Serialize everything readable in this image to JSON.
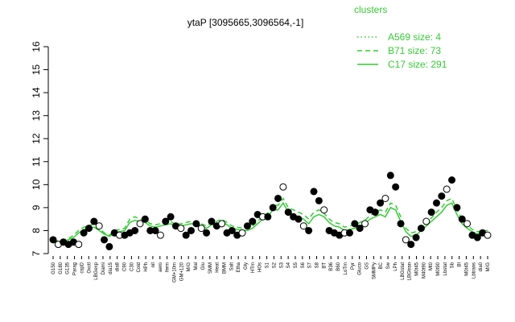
{
  "chart_data": {
    "type": "scatter",
    "title": "ytaP [3095665,3096564,-1]",
    "xlabel": "",
    "ylabel": "",
    "ylim": [
      7,
      16
    ],
    "yticks": [
      7,
      8,
      9,
      10,
      11,
      12,
      13,
      14,
      15,
      16
    ],
    "grid": false,
    "legend": {
      "title": "clusters",
      "placement": "top-right",
      "entries": [
        {
          "label": "A569 size: 4",
          "style": "dotted"
        },
        {
          "label": "B71 size: 73",
          "style": "dashed"
        },
        {
          "label": "C17 size: 291",
          "style": "solid"
        }
      ]
    },
    "colors": {
      "line": "#33cc33",
      "points": "#000000",
      "open_points": "#ffffff",
      "title": "#000000",
      "legend": "#33cc33"
    },
    "x_tick_labels": [
      "G150",
      "G180",
      "G135",
      "Parag",
      "cspD",
      "Oxctl",
      "LBGexp",
      "Diami",
      "dia15",
      "dia8",
      "C90",
      "C30",
      "Cold",
      "HPh",
      "nit",
      "aero",
      "ferm",
      "GM+10m",
      "GM+120",
      "M/G",
      "Mal",
      "Glu",
      "SMM",
      "Heat",
      "BMM",
      "Salt",
      "Etha",
      "Gly",
      "HTm",
      "HOs",
      "S1",
      "S2",
      "S3",
      "S4",
      "S5",
      "S6",
      "S7",
      "S8",
      "BT",
      "B36",
      "B60",
      "LoTm",
      "Pyr",
      "Gluco",
      "GS",
      "SMMPy",
      "BC",
      "Sw",
      "LPh",
      "LBGstat",
      "LBGtran",
      "M0t45",
      "M40t90",
      "Mt0",
      "M0t90",
      "Lbstat",
      "Sb",
      "BI",
      "M0t45",
      "Lbtrans",
      "dia0",
      "M/G"
    ],
    "series": [
      {
        "values": [
          7.6,
          7.4,
          7.5,
          7.4,
          7.5,
          7.4,
          7.9,
          8.1,
          8.4,
          8.2,
          7.6,
          7.3,
          7.9,
          7.8,
          7.8,
          7.9,
          8.0,
          8.3,
          8.5,
          8.0,
          8.0,
          7.8,
          8.4,
          8.6,
          8.2,
          8.1,
          7.8,
          8.0,
          8.3,
          8.1,
          7.9,
          8.4,
          8.2,
          8.3,
          7.9,
          8.0,
          7.8,
          7.9,
          8.2,
          8.4,
          8.7,
          8.6,
          8.6,
          9.0,
          9.4,
          9.9,
          8.8,
          8.6,
          8.5,
          8.2,
          8.0,
          9.7,
          9.3,
          8.9,
          8.0,
          7.9,
          7.8,
          7.9,
          7.9,
          8.3,
          8.1,
          8.3,
          8.9,
          8.8,
          9.2,
          9.4,
          10.4,
          9.9,
          8.3,
          7.6,
          7.4,
          7.7,
          8.1,
          8.4,
          8.8,
          9.2,
          9.5,
          9.8,
          10.2,
          9.0,
          8.5,
          8.3,
          7.8,
          7.7,
          7.9,
          7.8
        ]
      }
    ],
    "trend": {
      "solid": [
        7.55,
        7.5,
        7.55,
        7.6,
        7.7,
        7.9,
        8.05,
        8.1,
        8.15,
        8.0,
        7.85,
        7.75,
        7.9,
        7.95,
        8.0,
        8.35,
        8.45,
        8.4,
        8.35,
        8.2,
        8.15,
        8.2,
        8.25,
        8.3,
        8.15,
        8.2,
        8.25,
        8.3,
        8.25,
        8.2,
        8.1,
        8.25,
        8.3,
        8.4,
        8.25,
        8.1,
        8.05,
        8.0,
        8.0,
        8.1,
        8.3,
        8.5,
        8.6,
        8.9,
        8.9,
        9.2,
        8.8,
        8.7,
        8.6,
        8.5,
        8.3,
        8.6,
        8.7,
        8.6,
        8.35,
        8.2,
        8.15,
        8.0,
        8.05,
        8.1,
        8.2,
        8.3,
        8.5,
        8.6,
        8.7,
        8.6,
        9.0,
        8.9,
        8.4,
        7.95,
        7.75,
        7.8,
        8.0,
        8.2,
        8.4,
        8.6,
        8.8,
        9.1,
        9.2,
        8.7,
        8.3,
        8.1,
        7.95,
        7.85,
        7.9,
        7.9
      ],
      "dashed": [
        7.6,
        7.55,
        7.6,
        7.65,
        7.8,
        8.0,
        8.15,
        8.2,
        8.3,
        8.1,
        7.9,
        7.8,
        8.0,
        8.05,
        8.1,
        8.5,
        8.6,
        8.5,
        8.45,
        8.3,
        8.25,
        8.3,
        8.35,
        8.4,
        8.25,
        8.3,
        8.35,
        8.4,
        8.35,
        8.3,
        8.2,
        8.35,
        8.4,
        8.5,
        8.35,
        8.2,
        8.15,
        8.1,
        8.1,
        8.2,
        8.4,
        8.65,
        8.75,
        9.1,
        9.1,
        9.4,
        9.0,
        8.9,
        8.8,
        8.7,
        8.5,
        8.8,
        8.9,
        8.75,
        8.5,
        8.35,
        8.3,
        8.15,
        8.2,
        8.25,
        8.35,
        8.45,
        8.65,
        8.8,
        8.9,
        8.8,
        9.2,
        9.1,
        8.6,
        8.1,
        7.9,
        7.95,
        8.15,
        8.35,
        8.55,
        8.8,
        9.0,
        9.3,
        9.4,
        8.9,
        8.5,
        8.25,
        8.05,
        7.95,
        8.0,
        8.0
      ]
    }
  }
}
